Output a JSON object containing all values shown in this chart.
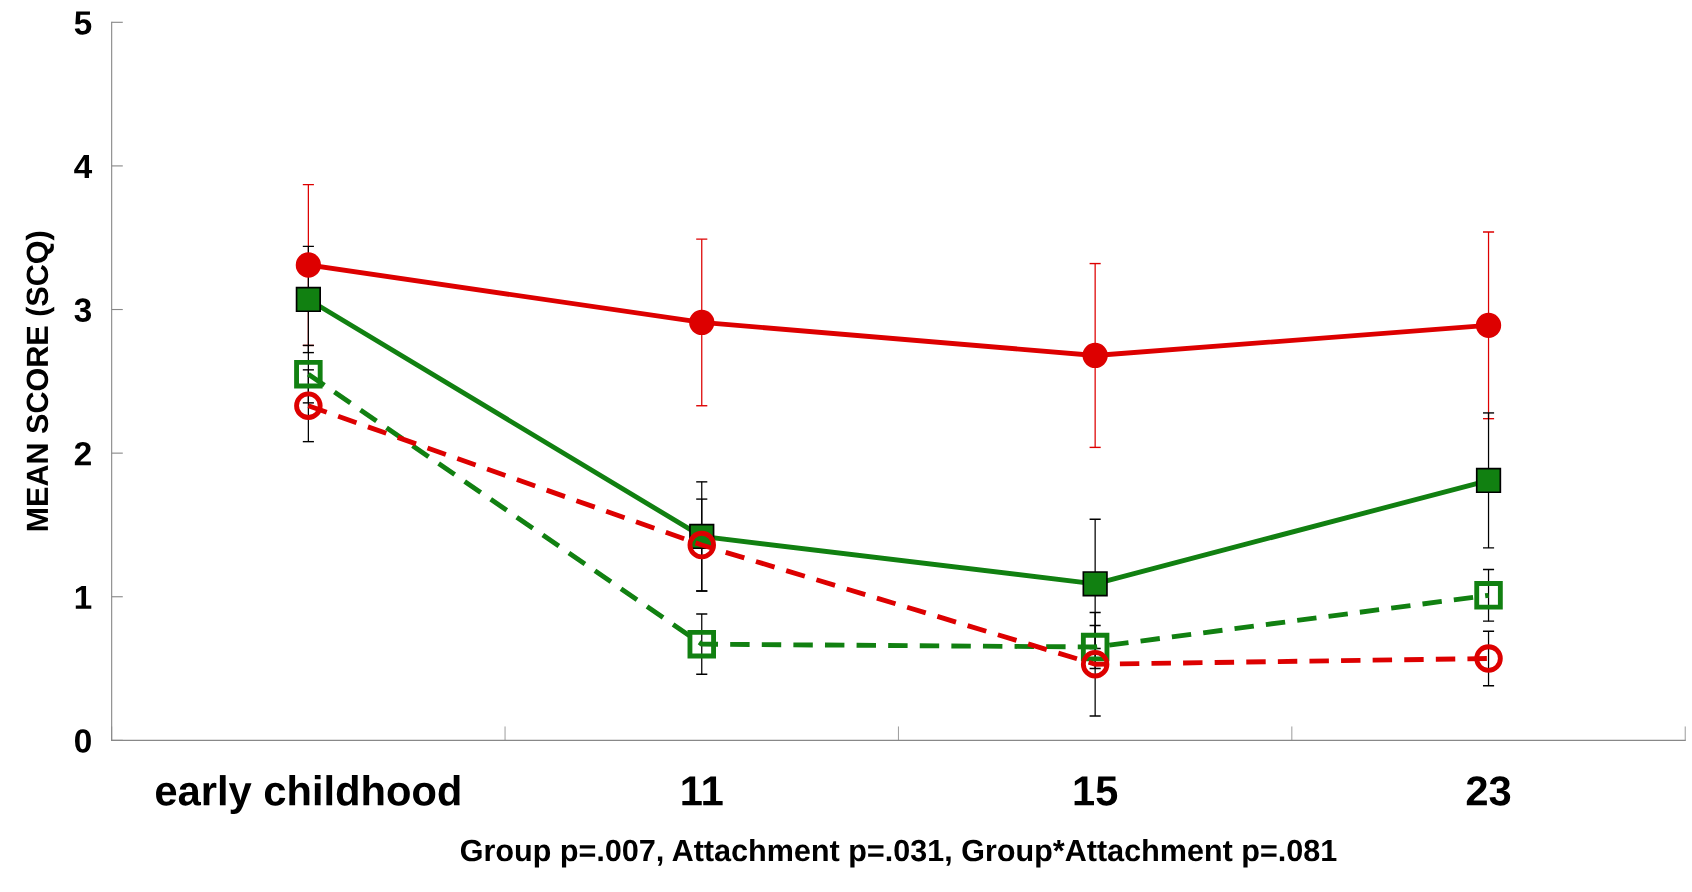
{
  "chart_data": {
    "type": "line",
    "ylabel": "MEAN SCORE (SCQ)",
    "xlabel": "Group p=.007, Attachment p=.031, Group*Attachment p=.081",
    "categories": [
      "early childhood",
      "11",
      "15",
      "23"
    ],
    "ylim": [
      0,
      5
    ],
    "yticks": [
      0,
      1,
      2,
      3,
      4,
      5
    ],
    "grid": false,
    "legend": false,
    "series": [
      {
        "color": "#dd0000",
        "marker": "circle",
        "line_style": "solid",
        "values": [
          3.31,
          2.91,
          2.68,
          2.89
        ],
        "errors": [
          0.56,
          0.58,
          0.64,
          0.65
        ]
      },
      {
        "color": "#118011",
        "marker": "square",
        "line_style": "solid",
        "values": [
          3.07,
          1.42,
          1.09,
          1.81
        ],
        "errors": [
          0.37,
          0.38,
          0.45,
          0.47
        ]
      },
      {
        "color": "#118011",
        "marker": "square",
        "line_style": "dashed",
        "values": [
          2.55,
          0.67,
          0.65,
          1.01
        ],
        "errors": [
          0.2,
          0.21,
          0.15,
          0.18
        ]
      },
      {
        "color": "#dd0000",
        "marker": "circle",
        "line_style": "dashed",
        "values": [
          2.33,
          1.36,
          0.53,
          0.57
        ],
        "errors": [
          0.25,
          0.32,
          0.36,
          0.19
        ]
      }
    ]
  }
}
